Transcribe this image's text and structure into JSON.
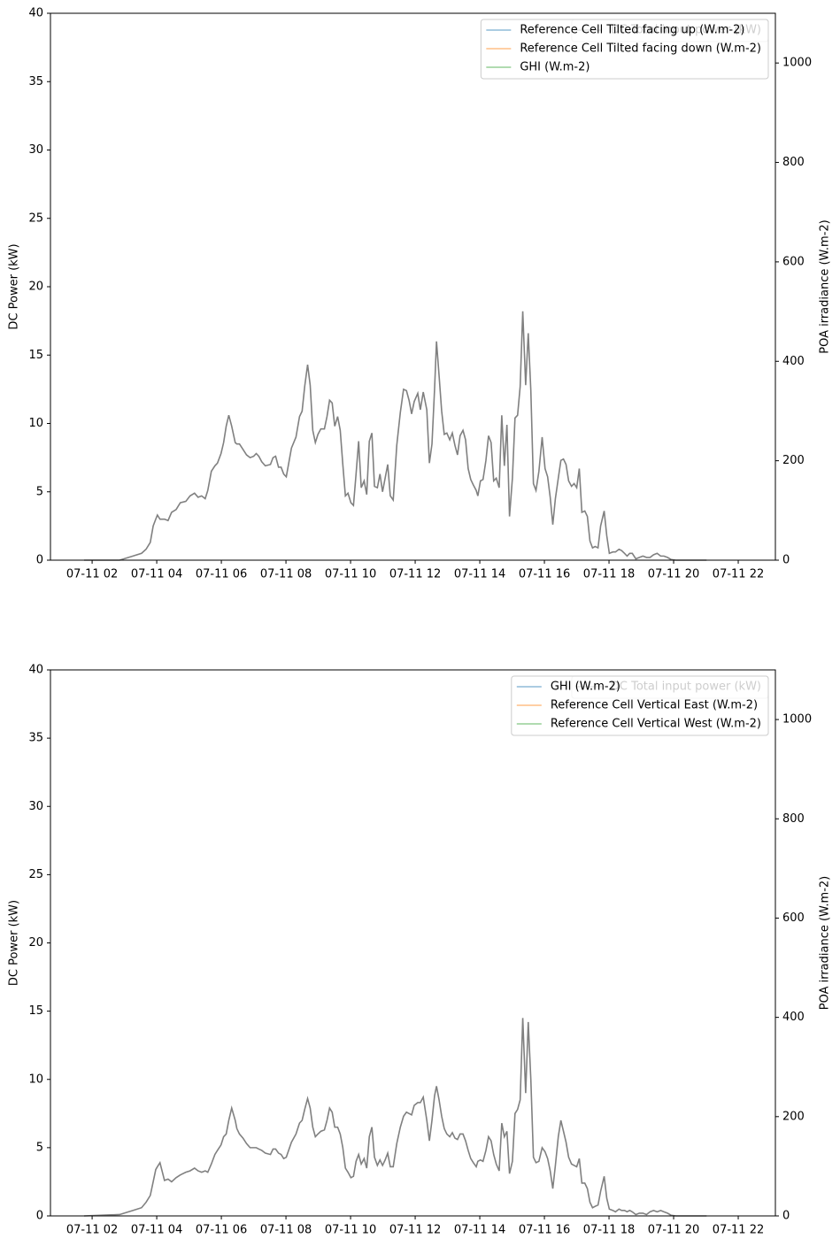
{
  "chart_data": [
    {
      "type": "line",
      "ylabel": "DC Power (kW)",
      "y2label": "POA irradiance (W.m-2)",
      "xlim": [
        0.71,
        23.15
      ],
      "xticks": [
        {
          "value": 2,
          "label": "07-11 02"
        },
        {
          "value": 4,
          "label": "07-11 04"
        },
        {
          "value": 6,
          "label": "07-11 06"
        },
        {
          "value": 8,
          "label": "07-11 08"
        },
        {
          "value": 10,
          "label": "07-11 10"
        },
        {
          "value": 12,
          "label": "07-11 12"
        },
        {
          "value": 14,
          "label": "07-11 14"
        },
        {
          "value": 16,
          "label": "07-11 16"
        },
        {
          "value": 18,
          "label": "07-11 18"
        },
        {
          "value": 20,
          "label": "07-11 20"
        },
        {
          "value": 22,
          "label": "07-11 22"
        }
      ],
      "ylim": [
        0,
        40
      ],
      "yticks": [
        0,
        5,
        10,
        15,
        20,
        25,
        30,
        35,
        40
      ],
      "y2lim": [
        0,
        1100
      ],
      "y2ticks": [
        0,
        200,
        400,
        600,
        800,
        1000
      ],
      "legend_loc": "upper right",
      "x": [
        1.75,
        2.85,
        3.26,
        3.53,
        3.67,
        3.8,
        3.89,
        3.97,
        4.02,
        4.1,
        4.24,
        4.35,
        4.46,
        4.6,
        4.73,
        4.9,
        5.03,
        5.17,
        5.28,
        5.39,
        5.5,
        5.58,
        5.69,
        5.8,
        5.88,
        5.99,
        6.07,
        6.15,
        6.23,
        6.32,
        6.43,
        6.48,
        6.56,
        6.67,
        6.78,
        6.89,
        7.0,
        7.08,
        7.16,
        7.25,
        7.36,
        7.52,
        7.6,
        7.68,
        7.77,
        7.85,
        7.93,
        8.01,
        8.17,
        8.31,
        8.42,
        8.5,
        8.58,
        8.67,
        8.75,
        8.83,
        8.91,
        8.99,
        9.08,
        9.19,
        9.27,
        9.35,
        9.43,
        9.51,
        9.6,
        9.68,
        9.76,
        9.84,
        9.92,
        10.01,
        10.09,
        10.17,
        10.25,
        10.33,
        10.42,
        10.5,
        10.58,
        10.66,
        10.74,
        10.83,
        10.91,
        10.99,
        11.07,
        11.15,
        11.23,
        11.32,
        11.43,
        11.54,
        11.64,
        11.73,
        11.81,
        11.89,
        11.97,
        12.08,
        12.16,
        12.25,
        12.36,
        12.44,
        12.52,
        12.6,
        12.66,
        12.74,
        12.82,
        12.9,
        12.98,
        13.07,
        13.15,
        13.23,
        13.31,
        13.39,
        13.48,
        13.56,
        13.64,
        13.72,
        13.8,
        13.89,
        13.94,
        14.02,
        14.1,
        14.19,
        14.27,
        14.35,
        14.43,
        14.51,
        14.6,
        14.68,
        14.76,
        14.84,
        14.92,
        15.01,
        15.09,
        15.17,
        15.25,
        15.33,
        15.42,
        15.5,
        15.58,
        15.66,
        15.74,
        15.83,
        15.93,
        16.02,
        16.1,
        16.18,
        16.26,
        16.34,
        16.43,
        16.51,
        16.59,
        16.67,
        16.75,
        16.84,
        16.92,
        17.0,
        17.08,
        17.16,
        17.25,
        17.33,
        17.41,
        17.49,
        17.57,
        17.66,
        17.74,
        17.85,
        17.93,
        18.01,
        18.12,
        18.2,
        18.31,
        18.39,
        18.48,
        18.56,
        18.64,
        18.72,
        18.83,
        18.94,
        19.05,
        19.16,
        19.27,
        19.38,
        19.49,
        19.6,
        19.7,
        19.81,
        19.92,
        20.06,
        21.02
      ],
      "series": [
        {
          "name": "DC Total input power (kW)",
          "color": "#808080",
          "values": [
            0,
            0,
            0.3,
            0.5,
            0.8,
            1.3,
            2.5,
            3.0,
            3.3,
            3.0,
            3.0,
            2.9,
            3.5,
            3.7,
            4.2,
            4.3,
            4.7,
            4.9,
            4.6,
            4.7,
            4.5,
            5.1,
            6.5,
            6.9,
            7.1,
            7.8,
            8.6,
            9.8,
            10.6,
            9.8,
            8.6,
            8.5,
            8.5,
            8.1,
            7.7,
            7.5,
            7.6,
            7.8,
            7.6,
            7.2,
            6.9,
            7.0,
            7.5,
            7.6,
            6.8,
            6.8,
            6.3,
            6.1,
            8.2,
            9.0,
            10.5,
            10.9,
            12.7,
            14.3,
            12.8,
            9.5,
            8.6,
            9.2,
            9.6,
            9.6,
            10.5,
            11.7,
            11.5,
            9.8,
            10.5,
            9.5,
            7.0,
            4.7,
            4.9,
            4.2,
            4.0,
            6.3,
            8.7,
            5.3,
            5.8,
            4.8,
            8.7,
            9.3,
            5.4,
            5.3,
            6.3,
            5.0,
            6.0,
            7.0,
            4.7,
            4.4,
            8.4,
            10.8,
            12.5,
            12.4,
            11.7,
            10.7,
            11.6,
            12.2,
            11.0,
            12.3,
            11.0,
            7.1,
            8.5,
            12.5,
            16.0,
            13.5,
            10.9,
            9.2,
            9.3,
            8.8,
            9.3,
            8.4,
            7.7,
            9.1,
            9.5,
            8.8,
            6.7,
            5.9,
            5.5,
            5.1,
            4.7,
            5.8,
            5.9,
            7.3,
            9.1,
            8.6,
            5.8,
            6.0,
            5.3,
            10.6,
            6.9,
            9.9,
            3.2,
            6.0,
            10.4,
            10.6,
            12.7,
            18.2,
            12.8,
            16.6,
            12.4,
            5.6,
            5.1,
            6.5,
            9.0,
            6.7,
            6.1,
            4.6,
            2.6,
            4.5,
            6.0,
            7.3,
            7.4,
            7.0,
            5.8,
            5.4,
            5.6,
            5.3,
            6.7,
            3.5,
            3.6,
            3.2,
            1.4,
            0.9,
            1.0,
            0.9,
            2.5,
            3.6,
            1.8,
            0.5,
            0.6,
            0.6,
            0.8,
            0.7,
            0.5,
            0.3,
            0.5,
            0.5,
            0.1,
            0.2,
            0.3,
            0.2,
            0.2,
            0.4,
            0.5,
            0.3,
            0.3,
            0.2,
            0.05,
            0,
            0
          ]
        }
      ],
      "legend": [
        {
          "name": "Reference Cell Tilted facing up (W.m-2)",
          "color": "#1f77b4"
        },
        {
          "name": "Reference Cell Tilted facing down (W.m-2)",
          "color": "#ff7f0e"
        },
        {
          "name": "GHI (W.m-2)",
          "color": "#2ca02c"
        }
      ]
    },
    {
      "type": "line",
      "ylabel": "DC Power (kW)",
      "y2label": "POA irradiance (W.m-2)",
      "xlim": [
        0.71,
        23.15
      ],
      "xticks": [
        {
          "value": 2,
          "label": "07-11 02"
        },
        {
          "value": 4,
          "label": "07-11 04"
        },
        {
          "value": 6,
          "label": "07-11 06"
        },
        {
          "value": 8,
          "label": "07-11 08"
        },
        {
          "value": 10,
          "label": "07-11 10"
        },
        {
          "value": 12,
          "label": "07-11 12"
        },
        {
          "value": 14,
          "label": "07-11 14"
        },
        {
          "value": 16,
          "label": "07-11 16"
        },
        {
          "value": 18,
          "label": "07-11 18"
        },
        {
          "value": 20,
          "label": "07-11 20"
        },
        {
          "value": 22,
          "label": "07-11 22"
        }
      ],
      "ylim": [
        0,
        40
      ],
      "yticks": [
        0,
        5,
        10,
        15,
        20,
        25,
        30,
        35,
        40
      ],
      "y2lim": [
        0,
        1100
      ],
      "y2ticks": [
        0,
        200,
        400,
        600,
        800,
        1000
      ],
      "legend_loc": "upper right",
      "x": [
        1.75,
        2.85,
        3.26,
        3.53,
        3.67,
        3.8,
        3.89,
        3.97,
        4.02,
        4.1,
        4.24,
        4.35,
        4.46,
        4.6,
        4.73,
        4.9,
        5.03,
        5.17,
        5.28,
        5.39,
        5.5,
        5.58,
        5.69,
        5.8,
        5.88,
        5.99,
        6.07,
        6.15,
        6.23,
        6.32,
        6.43,
        6.48,
        6.56,
        6.67,
        6.78,
        6.89,
        7.0,
        7.08,
        7.16,
        7.25,
        7.36,
        7.52,
        7.6,
        7.68,
        7.77,
        7.85,
        7.93,
        8.01,
        8.17,
        8.31,
        8.42,
        8.5,
        8.58,
        8.67,
        8.75,
        8.83,
        8.91,
        8.99,
        9.08,
        9.19,
        9.27,
        9.35,
        9.43,
        9.51,
        9.6,
        9.68,
        9.76,
        9.84,
        9.92,
        10.01,
        10.09,
        10.17,
        10.25,
        10.33,
        10.42,
        10.5,
        10.58,
        10.66,
        10.74,
        10.83,
        10.91,
        10.99,
        11.07,
        11.15,
        11.23,
        11.32,
        11.43,
        11.54,
        11.64,
        11.73,
        11.81,
        11.89,
        11.97,
        12.08,
        12.16,
        12.25,
        12.36,
        12.44,
        12.52,
        12.6,
        12.66,
        12.74,
        12.82,
        12.9,
        12.98,
        13.07,
        13.15,
        13.23,
        13.31,
        13.39,
        13.48,
        13.56,
        13.64,
        13.72,
        13.8,
        13.89,
        13.94,
        14.02,
        14.1,
        14.19,
        14.27,
        14.35,
        14.43,
        14.51,
        14.6,
        14.68,
        14.76,
        14.84,
        14.92,
        15.01,
        15.09,
        15.17,
        15.25,
        15.33,
        15.42,
        15.5,
        15.58,
        15.66,
        15.74,
        15.83,
        15.93,
        16.02,
        16.1,
        16.18,
        16.26,
        16.34,
        16.43,
        16.51,
        16.59,
        16.67,
        16.75,
        16.84,
        16.92,
        17.0,
        17.08,
        17.16,
        17.25,
        17.33,
        17.41,
        17.49,
        17.57,
        17.66,
        17.74,
        17.85,
        17.93,
        18.01,
        18.12,
        18.2,
        18.31,
        18.39,
        18.48,
        18.56,
        18.64,
        18.72,
        18.83,
        18.94,
        19.05,
        19.16,
        19.27,
        19.38,
        19.49,
        19.6,
        19.7,
        19.81,
        19.92,
        20.06,
        21.02
      ],
      "series": [
        {
          "name": "DC Total input power (kW)",
          "color": "#808080",
          "values": [
            0,
            0.1,
            0.4,
            0.6,
            1.0,
            1.5,
            2.5,
            3.4,
            3.6,
            3.9,
            2.6,
            2.7,
            2.5,
            2.8,
            3.0,
            3.2,
            3.3,
            3.5,
            3.3,
            3.2,
            3.3,
            3.2,
            3.8,
            4.5,
            4.8,
            5.2,
            5.8,
            6.0,
            7.0,
            7.9,
            7.0,
            6.4,
            6.0,
            5.7,
            5.3,
            5.0,
            5.0,
            5.0,
            4.9,
            4.8,
            4.6,
            4.5,
            4.9,
            4.9,
            4.6,
            4.5,
            4.2,
            4.3,
            5.4,
            6.0,
            6.8,
            7.0,
            7.8,
            8.6,
            7.9,
            6.5,
            5.8,
            6.0,
            6.2,
            6.3,
            7.0,
            7.9,
            7.6,
            6.5,
            6.5,
            6.0,
            5.0,
            3.5,
            3.2,
            2.8,
            2.9,
            4.0,
            4.5,
            3.8,
            4.2,
            3.5,
            5.8,
            6.5,
            4.3,
            3.7,
            4.1,
            3.7,
            4.1,
            4.6,
            3.6,
            3.6,
            5.3,
            6.5,
            7.3,
            7.6,
            7.5,
            7.4,
            8.1,
            8.3,
            8.3,
            8.7,
            7.0,
            5.5,
            7.0,
            8.8,
            9.5,
            8.5,
            7.3,
            6.4,
            6.0,
            5.8,
            6.1,
            5.7,
            5.6,
            6.0,
            6.0,
            5.5,
            4.8,
            4.2,
            3.9,
            3.6,
            4.0,
            4.1,
            4.0,
            4.8,
            5.8,
            5.5,
            4.5,
            3.8,
            3.3,
            6.8,
            5.8,
            6.2,
            3.1,
            4.0,
            7.5,
            7.8,
            8.5,
            14.5,
            9.0,
            14.2,
            10.0,
            4.3,
            3.9,
            4.0,
            5.0,
            4.7,
            4.2,
            3.3,
            2.0,
            3.7,
            5.8,
            7.0,
            6.2,
            5.4,
            4.3,
            3.8,
            3.7,
            3.6,
            4.2,
            2.4,
            2.4,
            2.0,
            1.0,
            0.6,
            0.7,
            0.8,
            1.8,
            2.9,
            1.3,
            0.5,
            0.4,
            0.3,
            0.5,
            0.4,
            0.4,
            0.3,
            0.4,
            0.3,
            0.1,
            0.2,
            0.2,
            0.1,
            0.3,
            0.4,
            0.3,
            0.4,
            0.3,
            0.2,
            0.05,
            0,
            0
          ]
        }
      ],
      "legend": [
        {
          "name": "GHI (W.m-2)",
          "color": "#1f77b4"
        },
        {
          "name": "Reference Cell Vertical East (W.m-2)",
          "color": "#ff7f0e"
        },
        {
          "name": "Reference Cell Vertical West (W.m-2)",
          "color": "#2ca02c"
        }
      ]
    }
  ]
}
